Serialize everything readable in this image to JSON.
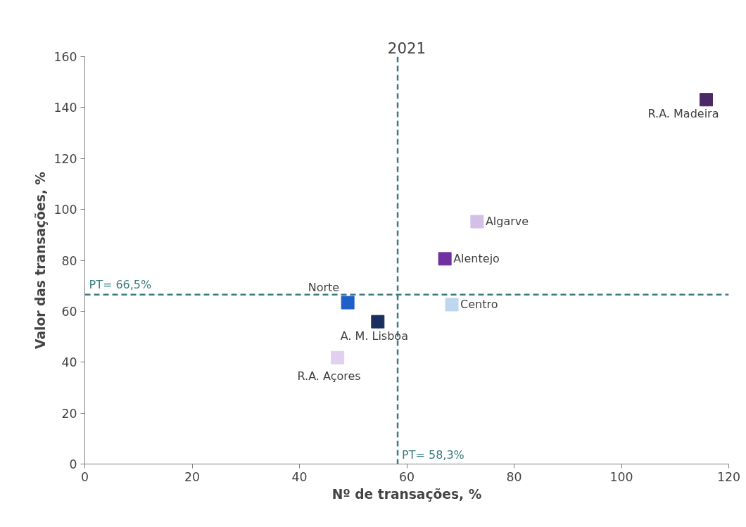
{
  "chart_data": {
    "type": "scatter",
    "title": "2021",
    "xlabel": "Nº de transações, %",
    "ylabel": "Valor das transações, %",
    "xlim": [
      0,
      120
    ],
    "ylim": [
      0,
      160
    ],
    "xticks": [
      0,
      20,
      40,
      60,
      80,
      100,
      120
    ],
    "yticks": [
      0,
      20,
      40,
      60,
      80,
      100,
      120,
      140,
      160
    ],
    "grid": false,
    "legend": false,
    "marker": "square",
    "series": [
      {
        "name": "R.A. Madeira",
        "color": "#4b2868",
        "x": [
          115.8
        ],
        "values": [
          143.1
        ]
      },
      {
        "name": "Algarve",
        "color": "#d4bfe6",
        "x": [
          73.1
        ],
        "values": [
          95.2
        ]
      },
      {
        "name": "Alentejo",
        "color": "#7030a0",
        "x": [
          67.1
        ],
        "values": [
          80.6
        ]
      },
      {
        "name": "Centro",
        "color": "#bdd7ee",
        "x": [
          68.4
        ],
        "values": [
          62.6
        ]
      },
      {
        "name": "Norte",
        "color": "#1f5fc8",
        "x": [
          49.0
        ],
        "values": [
          63.4
        ]
      },
      {
        "name": "A. M. Lisboa",
        "color": "#1b2f5e",
        "x": [
          54.6
        ],
        "values": [
          55.9
        ]
      },
      {
        "name": "R.A. Açores",
        "color": "#e0d0ee",
        "x": [
          47.1
        ],
        "values": [
          41.8
        ]
      }
    ],
    "ref_lines": [
      {
        "axis": "y",
        "value": 66.5,
        "label": "PT= 66,5%",
        "color": "#3a7b80",
        "line_style": "dashed"
      },
      {
        "axis": "x",
        "value": 58.3,
        "label": "PT= 58,3%",
        "color": "#3a7b80",
        "line_style": "dashed"
      }
    ]
  }
}
